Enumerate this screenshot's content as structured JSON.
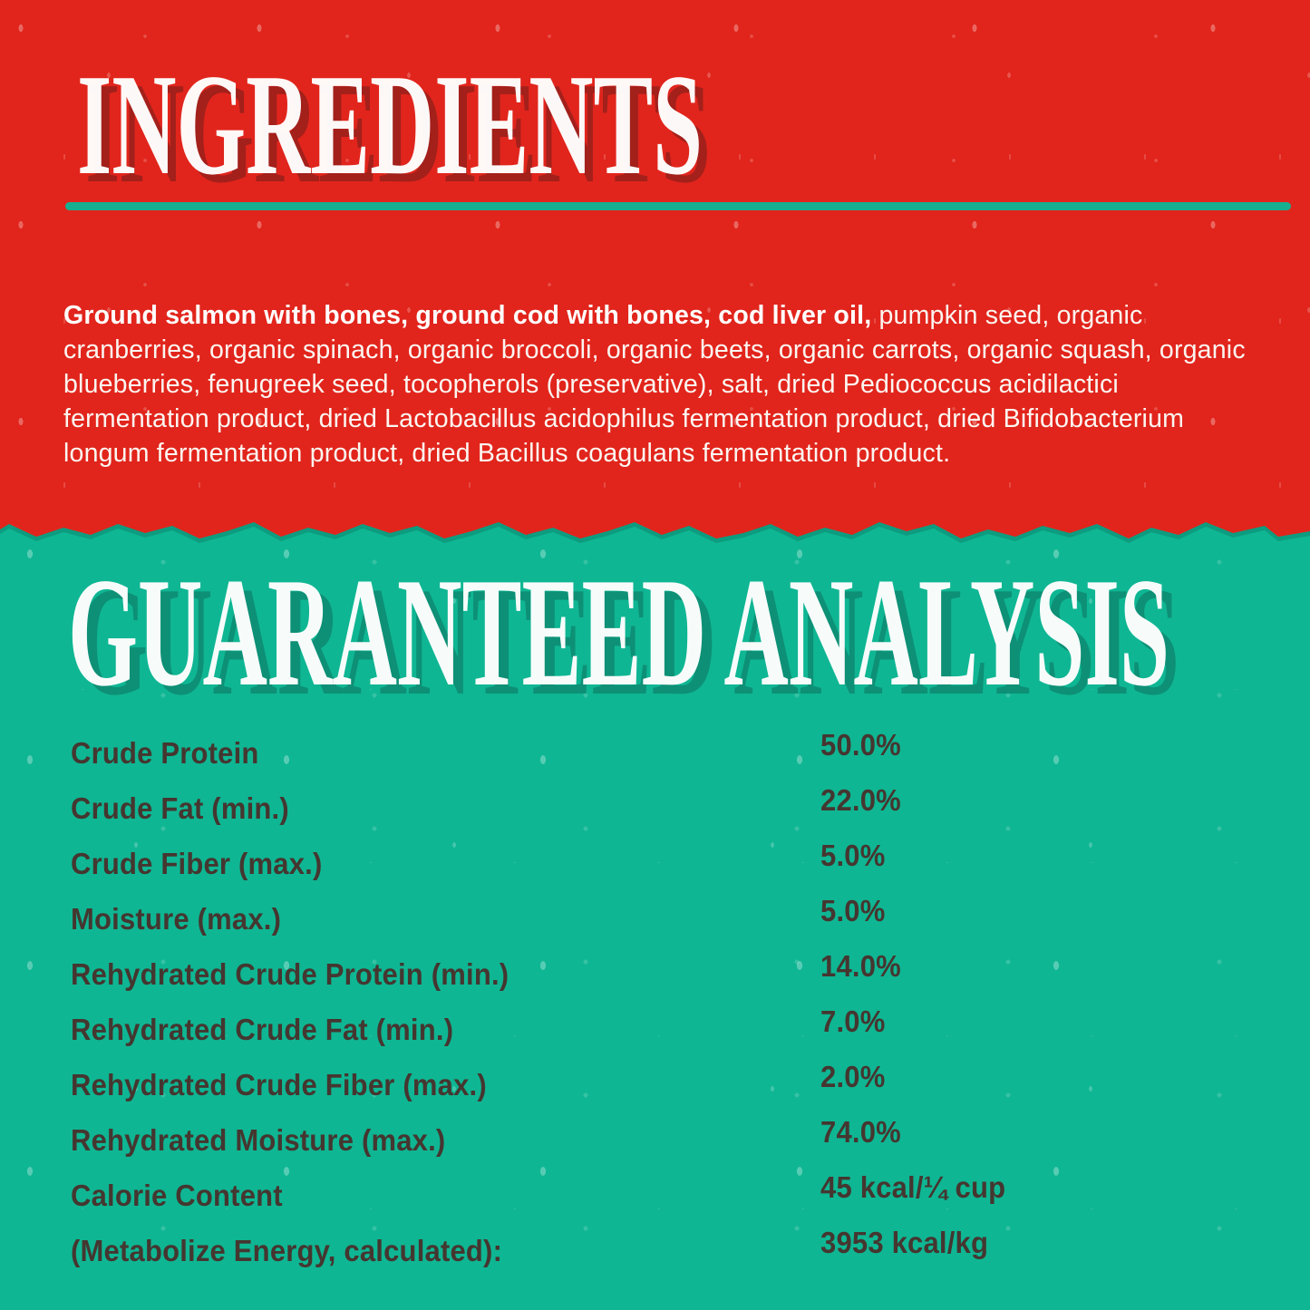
{
  "ingredients_section": {
    "title": "INGREDIENTS",
    "ingredients_bold": "Ground salmon with bones, ground cod with bones, cod liver oil,",
    "ingredients_rest": " pumpkin seed, organic cranberries, organic spinach, organic broccoli, organic beets, organic carrots, organic squash, organic blueberries, fenugreek seed, tocopherols (preservative), salt, dried Pediococcus acidilactici fermentation product, dried Lactobacillus acidophilus fermentation product, dried Bifidobacterium longum fermentation product, dried Bacillus coagulans fermentation product."
  },
  "analysis_section": {
    "title": "GUARANTEED ANALYSIS",
    "rows": [
      {
        "label": "Crude Protein",
        "value": "50.0%"
      },
      {
        "label": "Crude Fat (min.)",
        "value": "22.0%"
      },
      {
        "label": "Crude Fiber (max.)",
        "value": "5.0%"
      },
      {
        "label": "Moisture (max.)",
        "value": "5.0%"
      },
      {
        "label": "Rehydrated Crude Protein (min.)",
        "value": "14.0%"
      },
      {
        "label": "Rehydrated Crude Fat (min.)",
        "value": "7.0%"
      },
      {
        "label": "Rehydrated Crude Fiber (max.)",
        "value": "2.0%"
      },
      {
        "label": "Rehydrated Moisture (max.)",
        "value": "74.0%"
      },
      {
        "label": "Calorie Content",
        "value": "45 kcal/¼ cup"
      },
      {
        "label": "(Metabolize Energy, calculated):",
        "value": "3953 kcal/kg"
      }
    ]
  },
  "colors": {
    "red_background": "#E1251C",
    "teal_background": "#0FB693",
    "heading_text": "#FFFFFF",
    "ingredients_heading_shadow": "#A1201B",
    "analysis_heading_shadow": "#0D8F76",
    "divider_teal": "#16B091",
    "body_text": "#FCF6F1",
    "analysis_text": "#453630"
  }
}
